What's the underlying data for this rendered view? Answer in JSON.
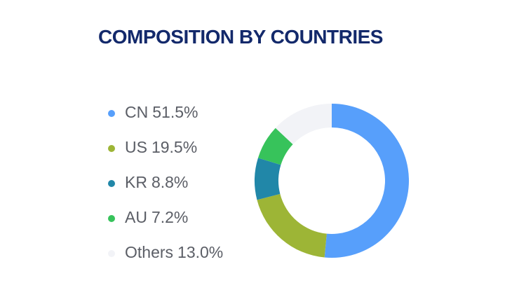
{
  "chart_data": {
    "type": "donut",
    "title": "COMPOSITION BY COUNTRIES",
    "categories": [
      "CN",
      "US",
      "KR",
      "AU",
      "Others"
    ],
    "values": [
      51.5,
      19.5,
      8.8,
      7.2,
      13.0
    ],
    "value_labels": [
      "51.5%",
      "19.5%",
      "8.8%",
      "7.2%",
      "13.0%"
    ],
    "colors": [
      "#579ffb",
      "#9db536",
      "#2187a8",
      "#37c35b",
      "#f2f3f7"
    ]
  }
}
